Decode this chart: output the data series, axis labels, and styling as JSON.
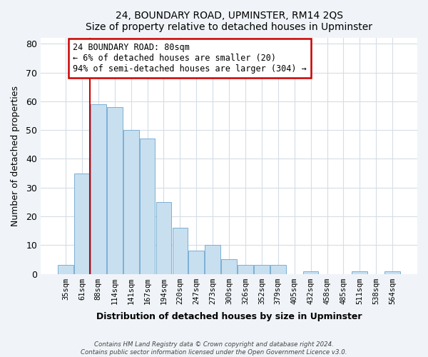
{
  "title": "24, BOUNDARY ROAD, UPMINSTER, RM14 2QS",
  "subtitle": "Size of property relative to detached houses in Upminster",
  "xlabel": "Distribution of detached houses by size in Upminster",
  "ylabel": "Number of detached properties",
  "bar_labels": [
    "35sqm",
    "61sqm",
    "88sqm",
    "114sqm",
    "141sqm",
    "167sqm",
    "194sqm",
    "220sqm",
    "247sqm",
    "273sqm",
    "300sqm",
    "326sqm",
    "352sqm",
    "379sqm",
    "405sqm",
    "432sqm",
    "458sqm",
    "485sqm",
    "511sqm",
    "538sqm",
    "564sqm"
  ],
  "bar_values": [
    3,
    35,
    59,
    58,
    50,
    47,
    25,
    16,
    8,
    10,
    5,
    3,
    3,
    3,
    0,
    1,
    0,
    0,
    1,
    0,
    1
  ],
  "bar_color": "#c8dff0",
  "bar_edge_color": "#7ab0d4",
  "vline_color": "#cc0000",
  "ylim": [
    0,
    82
  ],
  "yticks": [
    0,
    10,
    20,
    30,
    40,
    50,
    60,
    70,
    80
  ],
  "annotation_title": "24 BOUNDARY ROAD: 80sqm",
  "annotation_line1": "← 6% of detached houses are smaller (20)",
  "annotation_line2": "94% of semi-detached houses are larger (304) →",
  "footer_line1": "Contains HM Land Registry data © Crown copyright and database right 2024.",
  "footer_line2": "Contains public sector information licensed under the Open Government Licence v3.0.",
  "background_color": "#f0f4f8",
  "plot_background_color": "#ffffff",
  "grid_color": "#d4dde6"
}
